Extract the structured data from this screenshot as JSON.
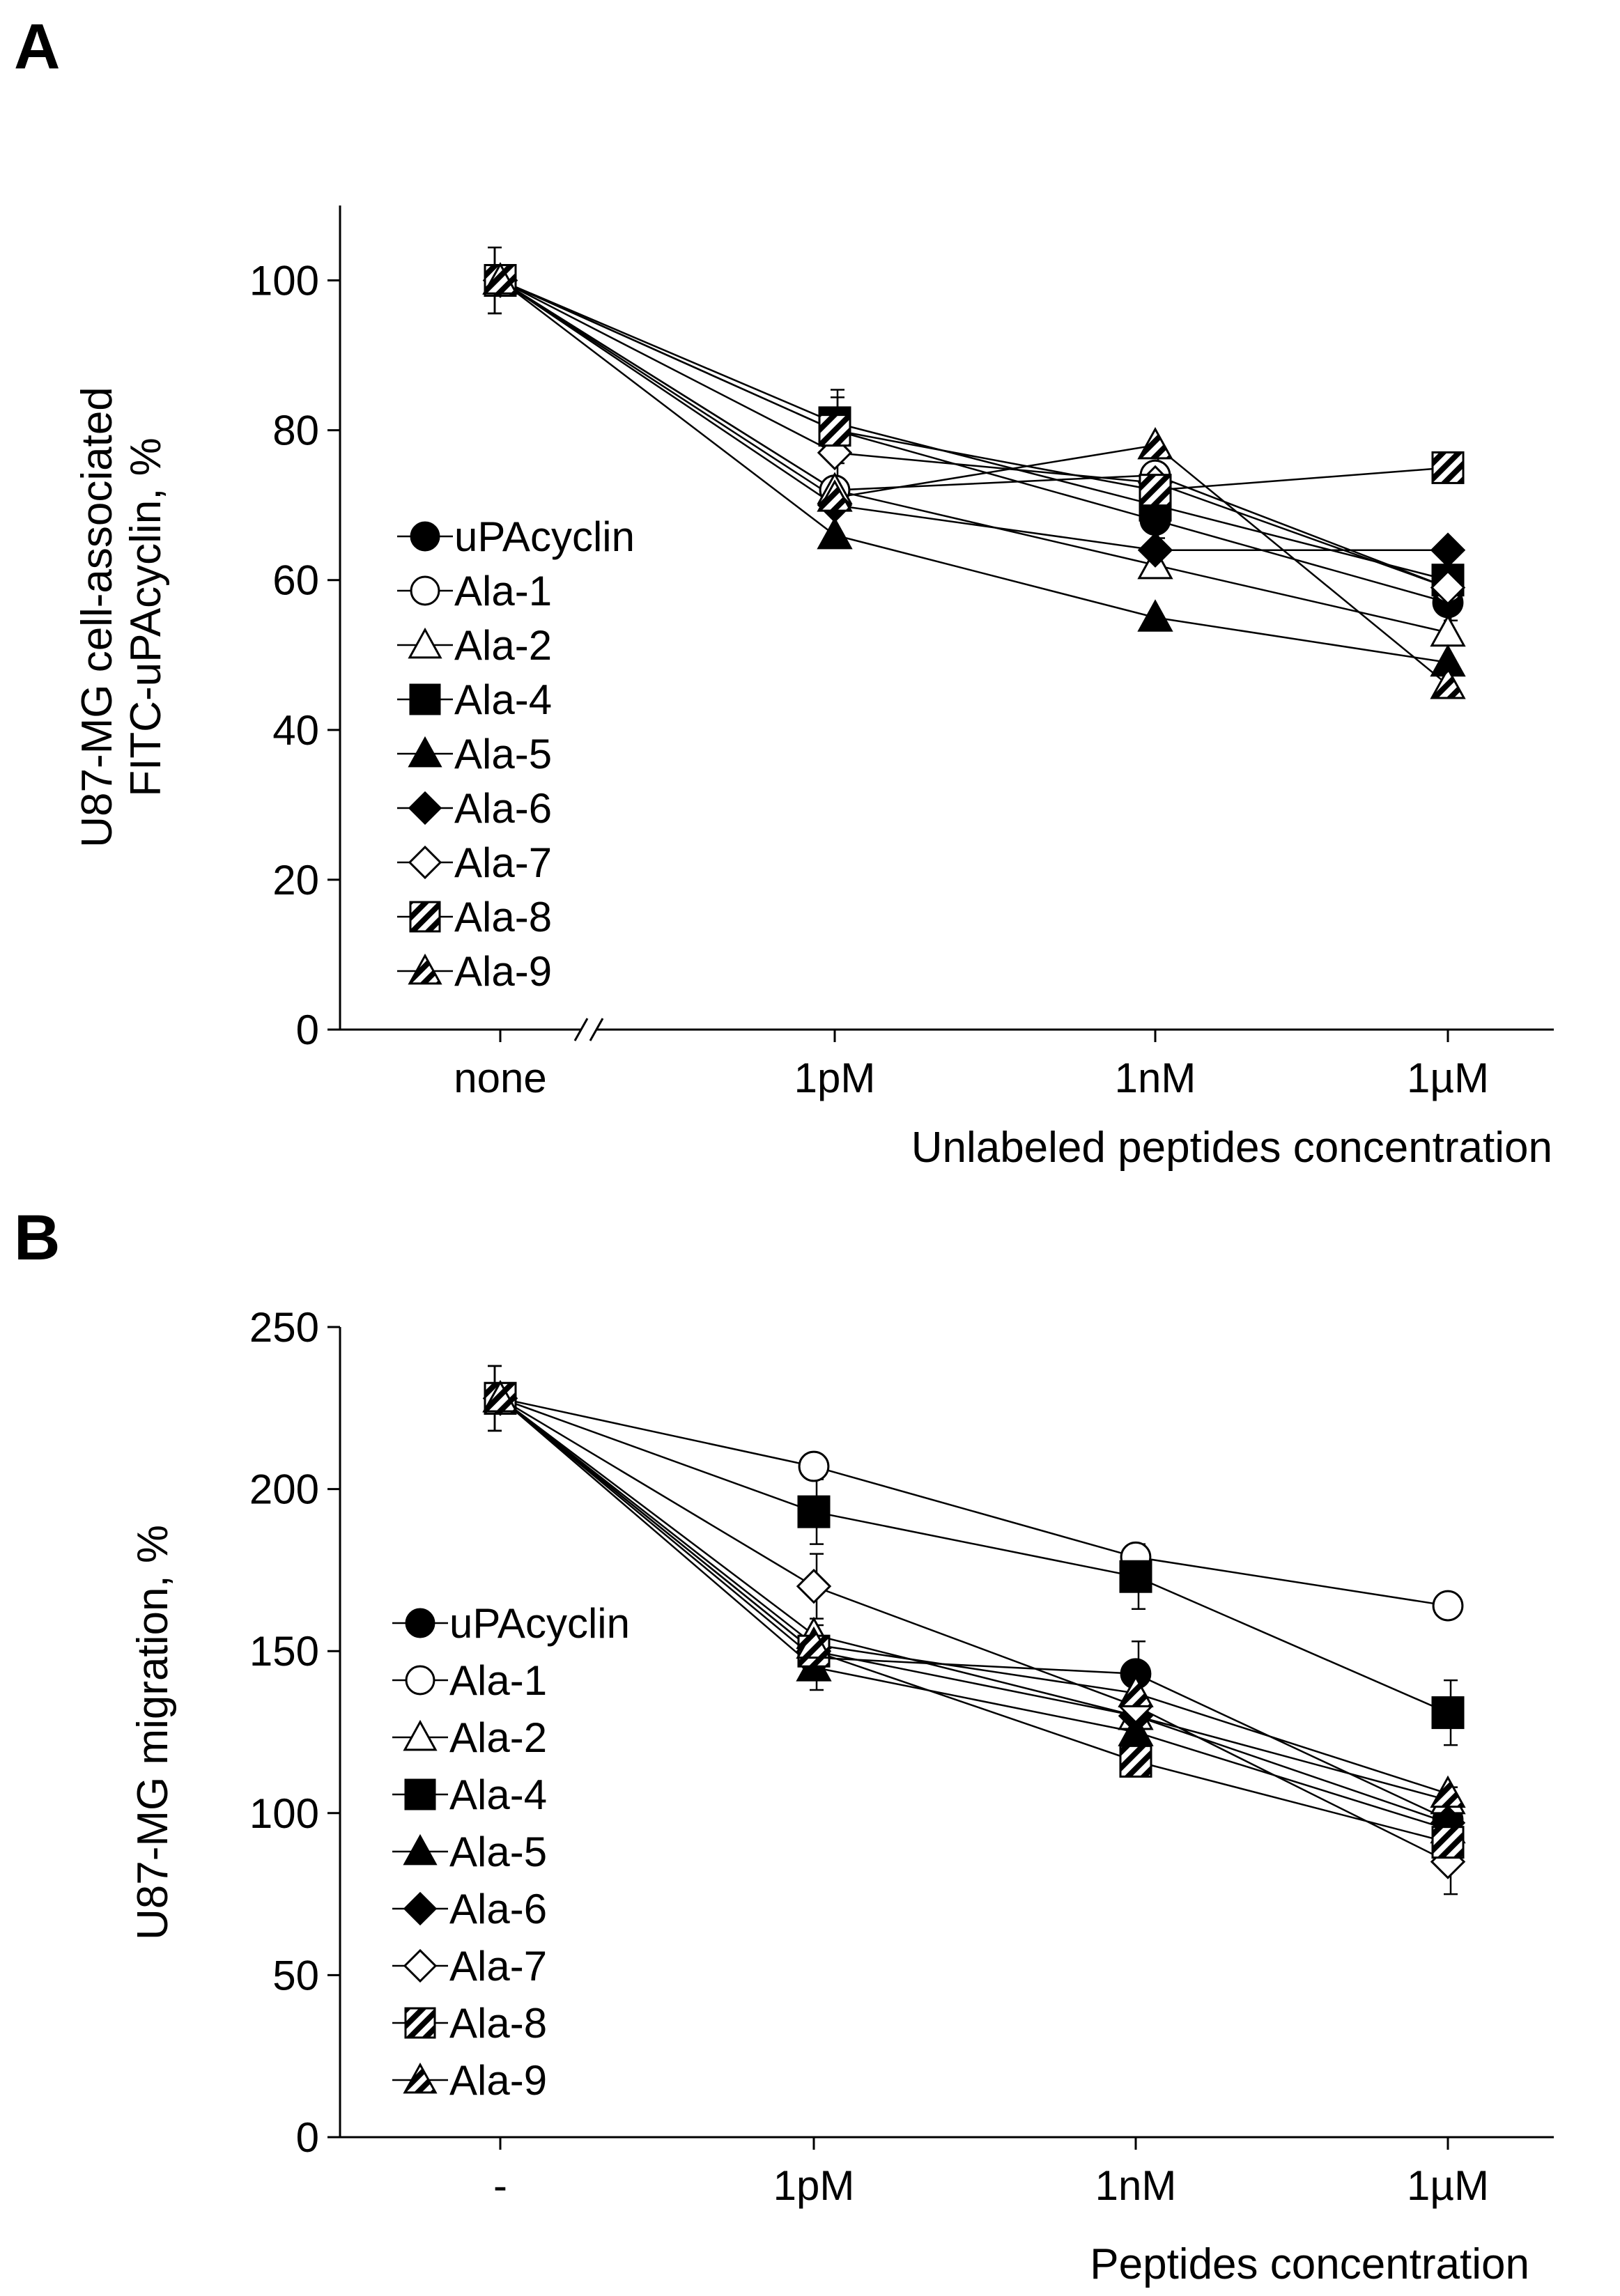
{
  "marker_fill": "#000000",
  "chart_data": [
    {
      "panel": "A",
      "type": "line",
      "categories": [
        "none",
        "1pM",
        "1nM",
        "1µM"
      ],
      "ylabel_lines": [
        "U87-MG cell-associated",
        "FITC-uPAcyclin, %"
      ],
      "xlabel": "Unlabeled peptides concentration",
      "ylim": [
        0,
        110
      ],
      "yticks": [
        0,
        20,
        40,
        60,
        80,
        100
      ],
      "axis_break": true,
      "legend_position": "left",
      "series": [
        {
          "name": "uPAcyclin",
          "marker": "circle-filled",
          "values": [
            100,
            80,
            68,
            57
          ]
        },
        {
          "name": "Ala-1",
          "marker": "circle-open",
          "values": [
            100,
            72,
            74,
            59
          ]
        },
        {
          "name": "Ala-2",
          "marker": "triangle-open",
          "values": [
            100,
            72,
            62,
            53
          ]
        },
        {
          "name": "Ala-4",
          "marker": "square-filled",
          "values": [
            100,
            81,
            70,
            60
          ]
        },
        {
          "name": "Ala-5",
          "marker": "triangle-filled",
          "values": [
            100,
            66,
            55,
            49
          ]
        },
        {
          "name": "Ala-6",
          "marker": "diamond-filled",
          "values": [
            100,
            70,
            64,
            64
          ]
        },
        {
          "name": "Ala-7",
          "marker": "diamond-open",
          "values": [
            100,
            77,
            73,
            59
          ]
        },
        {
          "name": "Ala-8",
          "marker": "square-hatched",
          "values": [
            100,
            80,
            72,
            75
          ]
        },
        {
          "name": "Ala-9",
          "marker": "triangle-hatched",
          "values": [
            100,
            71,
            78,
            46
          ]
        }
      ]
    },
    {
      "panel": "B",
      "type": "line",
      "categories": [
        "-",
        "1pM",
        "1nM",
        "1µM"
      ],
      "ylabel_lines": [
        "U87-MG migration, %"
      ],
      "xlabel": "Peptides concentration",
      "ylim": [
        0,
        250
      ],
      "yticks": [
        0,
        50,
        100,
        150,
        200,
        250
      ],
      "axis_break": false,
      "legend_position": "left",
      "series": [
        {
          "name": "uPAcyclin",
          "marker": "circle-filled",
          "values": [
            228,
            148,
            143,
            98
          ]
        },
        {
          "name": "Ala-1",
          "marker": "circle-open",
          "values": [
            228,
            207,
            179,
            164
          ]
        },
        {
          "name": "Ala-2",
          "marker": "triangle-open",
          "values": [
            228,
            155,
            130,
            104
          ]
        },
        {
          "name": "Ala-4",
          "marker": "square-filled",
          "values": [
            228,
            193,
            173,
            131
          ]
        },
        {
          "name": "Ala-5",
          "marker": "triangle-filled",
          "values": [
            228,
            145,
            125,
            95
          ]
        },
        {
          "name": "Ala-6",
          "marker": "diamond-filled",
          "values": [
            228,
            150,
            130,
            97
          ]
        },
        {
          "name": "Ala-7",
          "marker": "diamond-open",
          "values": [
            228,
            170,
            133,
            85
          ]
        },
        {
          "name": "Ala-8",
          "marker": "square-hatched",
          "values": [
            228,
            150,
            116,
            91
          ]
        },
        {
          "name": "Ala-9",
          "marker": "triangle-hatched",
          "values": [
            228,
            152,
            137,
            106
          ]
        }
      ]
    }
  ]
}
